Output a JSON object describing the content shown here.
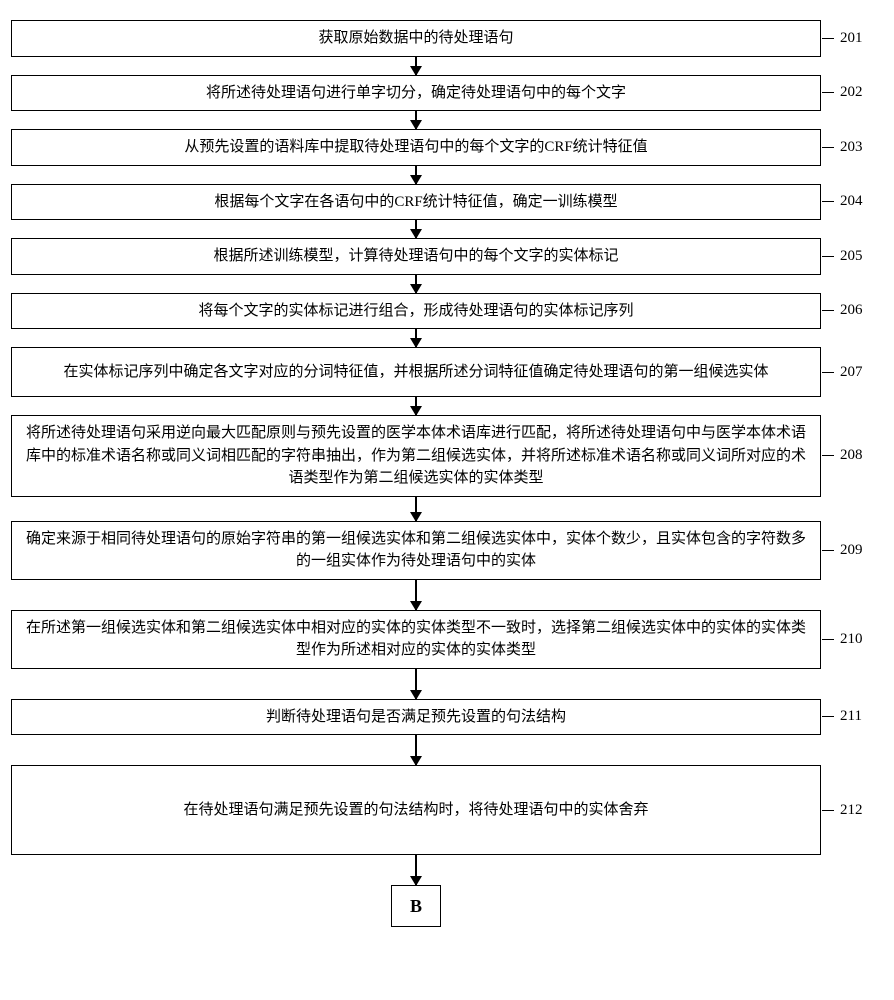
{
  "flowchart": {
    "type": "flowchart",
    "background_color": "#ffffff",
    "border_color": "#000000",
    "text_color": "#000000",
    "font_size": 15,
    "box_width_wide": 810,
    "arrow_short": 18,
    "arrow_long": 30,
    "lead_line_width": 12,
    "steps": [
      {
        "id": "201",
        "text": "获取原始数据中的待处理语句",
        "height": 28,
        "arrow_after": 18
      },
      {
        "id": "202",
        "text": "将所述待处理语句进行单字切分，确定待处理语句中的每个文字",
        "height": 28,
        "arrow_after": 18
      },
      {
        "id": "203",
        "text": "从预先设置的语料库中提取待处理语句中的每个文字的CRF统计特征值",
        "height": 28,
        "arrow_after": 18
      },
      {
        "id": "204",
        "text": "根据每个文字在各语句中的CRF统计特征值，确定一训练模型",
        "height": 28,
        "arrow_after": 18
      },
      {
        "id": "205",
        "text": "根据所述训练模型，计算待处理语句中的每个文字的实体标记",
        "height": 28,
        "arrow_after": 18
      },
      {
        "id": "206",
        "text": "将每个文字的实体标记进行组合，形成待处理语句的实体标记序列",
        "height": 28,
        "arrow_after": 18
      },
      {
        "id": "207",
        "text": "在实体标记序列中确定各文字对应的分词特征值，并根据所述分词特征值确定待处理语句的第一组候选实体",
        "height": 50,
        "arrow_after": 18
      },
      {
        "id": "208",
        "text": "将所述待处理语句采用逆向最大匹配原则与预先设置的医学本体术语库进行匹配，将所述待处理语句中与医学本体术语库中的标准术语名称或同义词相匹配的字符串抽出，作为第二组候选实体，并将所述标准术语名称或同义词所对应的术语类型作为第二组候选实体的实体类型",
        "height": 74,
        "arrow_after": 24
      },
      {
        "id": "209",
        "text": "确定来源于相同待处理语句的原始字符串的第一组候选实体和第二组候选实体中，实体个数少，且实体包含的字符数多的一组实体作为待处理语句中的实体",
        "height": 50,
        "arrow_after": 30
      },
      {
        "id": "210",
        "text": "在所述第一组候选实体和第二组候选实体中相对应的实体的实体类型不一致时，选择第二组候选实体中的实体的实体类型作为所述相对应的实体的实体类型",
        "height": 50,
        "arrow_after": 30
      },
      {
        "id": "211",
        "text": "判断待处理语句是否满足预先设置的句法结构",
        "height": 28,
        "arrow_after": 30
      },
      {
        "id": "212",
        "text": "在待处理语句满足预先设置的句法结构时，将待处理语句中的实体舍弃",
        "height": 90,
        "arrow_after": 30
      }
    ],
    "terminal": "B"
  }
}
